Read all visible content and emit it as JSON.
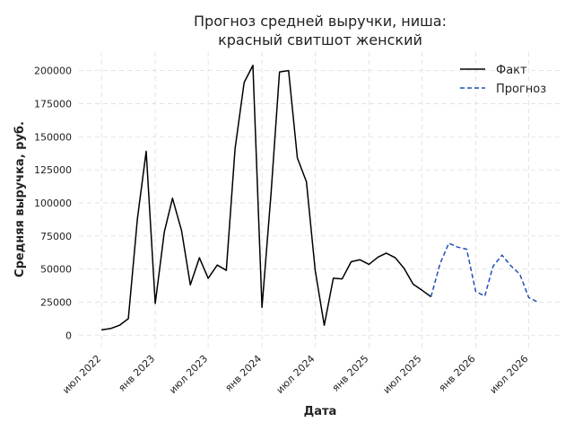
{
  "chart_data": {
    "type": "line",
    "title_lines": [
      "Прогноз средней выручки, ниша:",
      "красный свитшот женский"
    ],
    "xlabel": "Дата",
    "ylabel": "Средняя выручка, руб.",
    "x_ticks": [
      {
        "date": "2022-07-01",
        "label": "июл 2022"
      },
      {
        "date": "2023-01-01",
        "label": "янв 2023"
      },
      {
        "date": "2023-07-01",
        "label": "июл 2023"
      },
      {
        "date": "2024-01-01",
        "label": "янв 2024"
      },
      {
        "date": "2024-07-01",
        "label": "июл 2024"
      },
      {
        "date": "2025-01-01",
        "label": "янв 2025"
      },
      {
        "date": "2025-07-01",
        "label": "июл 2025"
      },
      {
        "date": "2026-01-01",
        "label": "янв 2026"
      },
      {
        "date": "2026-07-01",
        "label": "июл 2026"
      }
    ],
    "y_ticks": [
      0,
      25000,
      50000,
      75000,
      100000,
      125000,
      150000,
      175000,
      200000
    ],
    "x_range": [
      "2022-04-15",
      "2026-10-15"
    ],
    "ylim": [
      -10000,
      214000
    ],
    "grid": true,
    "legend_position": "top-right",
    "series": [
      {
        "name": "Факт",
        "color": "#000000",
        "style": "solid",
        "points": [
          {
            "x": "2022-07-01",
            "y": 4000
          },
          {
            "x": "2022-08-01",
            "y": 5000
          },
          {
            "x": "2022-09-01",
            "y": 7500
          },
          {
            "x": "2022-10-01",
            "y": 12500
          },
          {
            "x": "2022-11-01",
            "y": 88000
          },
          {
            "x": "2022-12-01",
            "y": 139000
          },
          {
            "x": "2023-01-01",
            "y": 24000
          },
          {
            "x": "2023-02-01",
            "y": 78000
          },
          {
            "x": "2023-03-01",
            "y": 103500
          },
          {
            "x": "2023-04-01",
            "y": 79000
          },
          {
            "x": "2023-05-01",
            "y": 38000
          },
          {
            "x": "2023-06-01",
            "y": 58500
          },
          {
            "x": "2023-07-01",
            "y": 43000
          },
          {
            "x": "2023-08-01",
            "y": 53000
          },
          {
            "x": "2023-09-01",
            "y": 49000
          },
          {
            "x": "2023-10-01",
            "y": 141000
          },
          {
            "x": "2023-11-01",
            "y": 191000
          },
          {
            "x": "2023-12-01",
            "y": 204000
          },
          {
            "x": "2024-01-01",
            "y": 21000
          },
          {
            "x": "2024-02-01",
            "y": 107000
          },
          {
            "x": "2024-03-01",
            "y": 199000
          },
          {
            "x": "2024-04-01",
            "y": 200000
          },
          {
            "x": "2024-05-01",
            "y": 134000
          },
          {
            "x": "2024-06-01",
            "y": 116000
          },
          {
            "x": "2024-07-01",
            "y": 49000
          },
          {
            "x": "2024-08-01",
            "y": 7500
          },
          {
            "x": "2024-09-01",
            "y": 43000
          },
          {
            "x": "2024-10-01",
            "y": 42500
          },
          {
            "x": "2024-11-01",
            "y": 55500
          },
          {
            "x": "2024-12-01",
            "y": 57000
          },
          {
            "x": "2025-01-01",
            "y": 53500
          },
          {
            "x": "2025-02-01",
            "y": 59000
          },
          {
            "x": "2025-03-01",
            "y": 62000
          },
          {
            "x": "2025-04-01",
            "y": 58500
          },
          {
            "x": "2025-05-01",
            "y": 50500
          },
          {
            "x": "2025-06-01",
            "y": 38500
          },
          {
            "x": "2025-07-01",
            "y": 34000
          },
          {
            "x": "2025-08-01",
            "y": 29000
          }
        ]
      },
      {
        "name": "Прогноз",
        "color": "#1f4fb8",
        "style": "dashed",
        "points": [
          {
            "x": "2025-08-01",
            "y": 29000
          },
          {
            "x": "2025-09-01",
            "y": 54000
          },
          {
            "x": "2025-10-01",
            "y": 69500
          },
          {
            "x": "2025-11-01",
            "y": 66500
          },
          {
            "x": "2025-12-01",
            "y": 65000
          },
          {
            "x": "2026-01-01",
            "y": 33000
          },
          {
            "x": "2026-02-01",
            "y": 29500
          },
          {
            "x": "2026-03-01",
            "y": 52000
          },
          {
            "x": "2026-04-01",
            "y": 60500
          },
          {
            "x": "2026-05-01",
            "y": 52500
          },
          {
            "x": "2026-06-01",
            "y": 46000
          },
          {
            "x": "2026-07-01",
            "y": 28500
          },
          {
            "x": "2026-08-01",
            "y": 25000
          }
        ]
      }
    ]
  }
}
